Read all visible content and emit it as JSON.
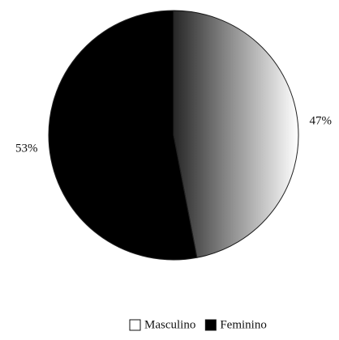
{
  "chart_data": {
    "type": "pie",
    "categories": [
      "Masculino",
      "Feminino"
    ],
    "values": [
      47,
      53
    ],
    "value_labels": [
      "47%",
      "53%"
    ],
    "colors": [
      "#ffffff",
      "#000000"
    ]
  }
}
